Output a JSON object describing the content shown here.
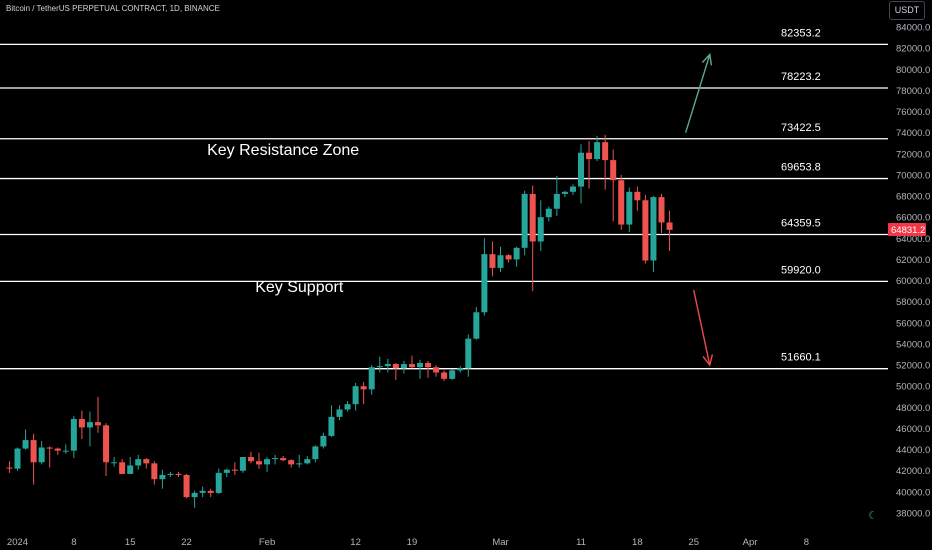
{
  "header": {
    "symbol_title": "Bitcoin / TetherUS PERPETUAL CONTRACT, 1D, BINANCE",
    "currency_button": "USDT"
  },
  "colors": {
    "background": "#000000",
    "up": "#26a69a",
    "down": "#ef5350",
    "level_line": "#ffffff",
    "price_label_bg": "#f23645",
    "arrow_up": "#5fa98a",
    "arrow_down": "#f0484f"
  },
  "icons": {
    "theme_toggle": "moon-icon"
  },
  "chart_data": {
    "type": "candlestick",
    "title": "",
    "xlabel": "",
    "ylabel": "",
    "ylim": [
      37000,
      85000
    ],
    "y_ticks": [
      "84000.0",
      "82000.0",
      "80000.0",
      "78000.0",
      "76000.0",
      "74000.0",
      "72000.0",
      "70000.0",
      "68000.0",
      "66000.0",
      "64000.0",
      "62000.0",
      "60000.0",
      "58000.0",
      "56000.0",
      "54000.0",
      "52000.0",
      "50000.0",
      "48000.0",
      "46000.0",
      "44000.0",
      "42000.0",
      "40000.0",
      "38000.0"
    ],
    "x_ticks": [
      {
        "label": "2024",
        "date": "2024-01-01"
      },
      {
        "label": "8",
        "date": "2024-01-08"
      },
      {
        "label": "15",
        "date": "2024-01-15"
      },
      {
        "label": "22",
        "date": "2024-01-22"
      },
      {
        "label": "Feb",
        "date": "2024-02-01"
      },
      {
        "label": "12",
        "date": "2024-02-12"
      },
      {
        "label": "19",
        "date": "2024-02-19"
      },
      {
        "label": "Mar",
        "date": "2024-03-01"
      },
      {
        "label": "11",
        "date": "2024-03-11"
      },
      {
        "label": "18",
        "date": "2024-03-18"
      },
      {
        "label": "25",
        "date": "2024-03-25"
      },
      {
        "label": "Apr",
        "date": "2024-04-01"
      },
      {
        "label": "8",
        "date": "2024-04-08"
      }
    ],
    "x_range": [
      "2023-12-30",
      "2024-04-14"
    ],
    "last_price": "64831.2",
    "levels": [
      {
        "label": "82353.2",
        "value": 82353.2
      },
      {
        "label": "78223.2",
        "value": 78223.2
      },
      {
        "label": "73422.5",
        "value": 73422.5
      },
      {
        "label": "69653.8",
        "value": 69653.8
      },
      {
        "label": "64359.5",
        "value": 64359.5
      },
      {
        "label": "59920.0",
        "value": 59920.0
      },
      {
        "label": "51660.1",
        "value": 51660.1
      }
    ],
    "annotations": [
      {
        "text": "Key Resistance Zone",
        "date": "2024-02-03",
        "value": 71900
      },
      {
        "text": "Key Support",
        "date": "2024-02-05",
        "value": 58900
      }
    ],
    "arrows": [
      {
        "direction": "up",
        "from": {
          "date": "2024-03-24",
          "value": 74000
        },
        "to": {
          "date": "2024-03-27",
          "value": 81400
        }
      },
      {
        "direction": "down",
        "from": {
          "date": "2024-03-25",
          "value": 59100
        },
        "to": {
          "date": "2024-03-27",
          "value": 52000
        }
      }
    ],
    "candles": [
      {
        "date": "2023-12-31",
        "o": 42300,
        "h": 42900,
        "l": 41800,
        "c": 42200
      },
      {
        "date": "2024-01-01",
        "o": 42200,
        "h": 44200,
        "l": 42000,
        "c": 44100
      },
      {
        "date": "2024-01-02",
        "o": 44100,
        "h": 45900,
        "l": 44000,
        "c": 44900
      },
      {
        "date": "2024-01-03",
        "o": 44900,
        "h": 45500,
        "l": 40700,
        "c": 42800
      },
      {
        "date": "2024-01-04",
        "o": 42800,
        "h": 44800,
        "l": 42600,
        "c": 44200
      },
      {
        "date": "2024-01-05",
        "o": 44200,
        "h": 44300,
        "l": 42300,
        "c": 44100
      },
      {
        "date": "2024-01-06",
        "o": 44100,
        "h": 44200,
        "l": 43500,
        "c": 43900
      },
      {
        "date": "2024-01-07",
        "o": 43900,
        "h": 44500,
        "l": 43600,
        "c": 43900
      },
      {
        "date": "2024-01-08",
        "o": 43900,
        "h": 47200,
        "l": 43200,
        "c": 46900
      },
      {
        "date": "2024-01-09",
        "o": 46900,
        "h": 47700,
        "l": 45000,
        "c": 46100
      },
      {
        "date": "2024-01-10",
        "o": 46100,
        "h": 47600,
        "l": 44300,
        "c": 46600
      },
      {
        "date": "2024-01-11",
        "o": 46600,
        "h": 49000,
        "l": 45600,
        "c": 46300
      },
      {
        "date": "2024-01-12",
        "o": 46300,
        "h": 46500,
        "l": 41500,
        "c": 42800
      },
      {
        "date": "2024-01-13",
        "o": 42800,
        "h": 43300,
        "l": 42400,
        "c": 42800
      },
      {
        "date": "2024-01-14",
        "o": 42800,
        "h": 43100,
        "l": 41700,
        "c": 41700
      },
      {
        "date": "2024-01-15",
        "o": 41700,
        "h": 43300,
        "l": 41700,
        "c": 42500
      },
      {
        "date": "2024-01-16",
        "o": 42500,
        "h": 43500,
        "l": 42100,
        "c": 43100
      },
      {
        "date": "2024-01-17",
        "o": 43100,
        "h": 43200,
        "l": 42200,
        "c": 42700
      },
      {
        "date": "2024-01-18",
        "o": 42700,
        "h": 42900,
        "l": 40700,
        "c": 41200
      },
      {
        "date": "2024-01-19",
        "o": 41200,
        "h": 42100,
        "l": 40300,
        "c": 41600
      },
      {
        "date": "2024-01-20",
        "o": 41600,
        "h": 41900,
        "l": 41400,
        "c": 41700
      },
      {
        "date": "2024-01-21",
        "o": 41700,
        "h": 41900,
        "l": 41400,
        "c": 41600
      },
      {
        "date": "2024-01-22",
        "o": 41600,
        "h": 41700,
        "l": 39400,
        "c": 39500
      },
      {
        "date": "2024-01-23",
        "o": 39500,
        "h": 40100,
        "l": 38500,
        "c": 39900
      },
      {
        "date": "2024-01-24",
        "o": 39900,
        "h": 40500,
        "l": 39500,
        "c": 40100
      },
      {
        "date": "2024-01-25",
        "o": 40100,
        "h": 40300,
        "l": 39500,
        "c": 39900
      },
      {
        "date": "2024-01-26",
        "o": 39900,
        "h": 42200,
        "l": 39800,
        "c": 41800
      },
      {
        "date": "2024-01-27",
        "o": 41800,
        "h": 42200,
        "l": 41400,
        "c": 42100
      },
      {
        "date": "2024-01-28",
        "o": 42100,
        "h": 42800,
        "l": 41600,
        "c": 42000
      },
      {
        "date": "2024-01-29",
        "o": 42000,
        "h": 43300,
        "l": 41800,
        "c": 43300
      },
      {
        "date": "2024-01-30",
        "o": 43300,
        "h": 43800,
        "l": 42700,
        "c": 42900
      },
      {
        "date": "2024-01-31",
        "o": 42900,
        "h": 43700,
        "l": 42200,
        "c": 42600
      },
      {
        "date": "2024-02-01",
        "o": 42600,
        "h": 43300,
        "l": 41900,
        "c": 43100
      },
      {
        "date": "2024-02-02",
        "o": 43100,
        "h": 43500,
        "l": 42600,
        "c": 43200
      },
      {
        "date": "2024-02-03",
        "o": 43200,
        "h": 43400,
        "l": 42900,
        "c": 43000
      },
      {
        "date": "2024-02-04",
        "o": 43000,
        "h": 43100,
        "l": 42300,
        "c": 42600
      },
      {
        "date": "2024-02-05",
        "o": 42600,
        "h": 43500,
        "l": 42300,
        "c": 42700
      },
      {
        "date": "2024-02-06",
        "o": 42700,
        "h": 43400,
        "l": 42600,
        "c": 43100
      },
      {
        "date": "2024-02-07",
        "o": 43100,
        "h": 44400,
        "l": 42800,
        "c": 44300
      },
      {
        "date": "2024-02-08",
        "o": 44300,
        "h": 45600,
        "l": 44100,
        "c": 45300
      },
      {
        "date": "2024-02-09",
        "o": 45300,
        "h": 48200,
        "l": 45200,
        "c": 47100
      },
      {
        "date": "2024-02-10",
        "o": 47100,
        "h": 48200,
        "l": 46800,
        "c": 47800
      },
      {
        "date": "2024-02-11",
        "o": 47800,
        "h": 48600,
        "l": 47600,
        "c": 48300
      },
      {
        "date": "2024-02-12",
        "o": 48300,
        "h": 50300,
        "l": 47700,
        "c": 50000
      },
      {
        "date": "2024-02-13",
        "o": 50000,
        "h": 50400,
        "l": 48300,
        "c": 49700
      },
      {
        "date": "2024-02-14",
        "o": 49700,
        "h": 52000,
        "l": 49200,
        "c": 51800
      },
      {
        "date": "2024-02-15",
        "o": 51800,
        "h": 52800,
        "l": 51300,
        "c": 51900
      },
      {
        "date": "2024-02-16",
        "o": 51900,
        "h": 52600,
        "l": 51300,
        "c": 52100
      },
      {
        "date": "2024-02-17",
        "o": 52100,
        "h": 52200,
        "l": 50600,
        "c": 51700
      },
      {
        "date": "2024-02-18",
        "o": 51700,
        "h": 52400,
        "l": 51200,
        "c": 52100
      },
      {
        "date": "2024-02-19",
        "o": 52100,
        "h": 52900,
        "l": 51700,
        "c": 51800
      },
      {
        "date": "2024-02-20",
        "o": 51800,
        "h": 52500,
        "l": 50700,
        "c": 52200
      },
      {
        "date": "2024-02-21",
        "o": 52200,
        "h": 52400,
        "l": 50800,
        "c": 51800
      },
      {
        "date": "2024-02-22",
        "o": 51800,
        "h": 52000,
        "l": 50900,
        "c": 51300
      },
      {
        "date": "2024-02-23",
        "o": 51300,
        "h": 51500,
        "l": 50500,
        "c": 50700
      },
      {
        "date": "2024-02-24",
        "o": 50700,
        "h": 51600,
        "l": 50600,
        "c": 51500
      },
      {
        "date": "2024-02-25",
        "o": 51500,
        "h": 51900,
        "l": 51300,
        "c": 51700
      },
      {
        "date": "2024-02-26",
        "o": 51700,
        "h": 54900,
        "l": 50900,
        "c": 54500
      },
      {
        "date": "2024-02-27",
        "o": 54500,
        "h": 57500,
        "l": 54400,
        "c": 57000
      },
      {
        "date": "2024-02-28",
        "o": 57000,
        "h": 64000,
        "l": 56700,
        "c": 62500
      },
      {
        "date": "2024-02-29",
        "o": 62500,
        "h": 63700,
        "l": 60400,
        "c": 61200
      },
      {
        "date": "2024-03-01",
        "o": 61200,
        "h": 63200,
        "l": 60800,
        "c": 62400
      },
      {
        "date": "2024-03-02",
        "o": 62400,
        "h": 62500,
        "l": 61700,
        "c": 62000
      },
      {
        "date": "2024-03-03",
        "o": 62000,
        "h": 63200,
        "l": 61300,
        "c": 63100
      },
      {
        "date": "2024-03-04",
        "o": 63100,
        "h": 68500,
        "l": 62400,
        "c": 68200
      },
      {
        "date": "2024-03-05",
        "o": 68200,
        "h": 69000,
        "l": 59000,
        "c": 63700
      },
      {
        "date": "2024-03-06",
        "o": 63700,
        "h": 67600,
        "l": 62800,
        "c": 66000
      },
      {
        "date": "2024-03-07",
        "o": 66000,
        "h": 67000,
        "l": 65600,
        "c": 66800
      },
      {
        "date": "2024-03-08",
        "o": 66800,
        "h": 69900,
        "l": 66100,
        "c": 68200
      },
      {
        "date": "2024-03-09",
        "o": 68200,
        "h": 68500,
        "l": 67900,
        "c": 68400
      },
      {
        "date": "2024-03-10",
        "o": 68400,
        "h": 69100,
        "l": 68100,
        "c": 68900
      },
      {
        "date": "2024-03-11",
        "o": 68900,
        "h": 72900,
        "l": 67300,
        "c": 72100
      },
      {
        "date": "2024-03-12",
        "o": 72100,
        "h": 73200,
        "l": 68700,
        "c": 71500
      },
      {
        "date": "2024-03-13",
        "o": 71500,
        "h": 73700,
        "l": 71300,
        "c": 73100
      },
      {
        "date": "2024-03-14",
        "o": 73100,
        "h": 73800,
        "l": 68600,
        "c": 71400
      },
      {
        "date": "2024-03-15",
        "o": 71400,
        "h": 72400,
        "l": 65600,
        "c": 69500
      },
      {
        "date": "2024-03-16",
        "o": 69500,
        "h": 70000,
        "l": 64800,
        "c": 65300
      },
      {
        "date": "2024-03-17",
        "o": 65300,
        "h": 68800,
        "l": 64600,
        "c": 68400
      },
      {
        "date": "2024-03-18",
        "o": 68400,
        "h": 68900,
        "l": 66600,
        "c": 67600
      },
      {
        "date": "2024-03-19",
        "o": 67600,
        "h": 68100,
        "l": 61600,
        "c": 61900
      },
      {
        "date": "2024-03-20",
        "o": 61900,
        "h": 68000,
        "l": 60800,
        "c": 67900
      },
      {
        "date": "2024-03-21",
        "o": 67900,
        "h": 68200,
        "l": 64500,
        "c": 65500
      },
      {
        "date": "2024-03-22",
        "o": 65500,
        "h": 66600,
        "l": 62800,
        "c": 64800
      }
    ]
  }
}
